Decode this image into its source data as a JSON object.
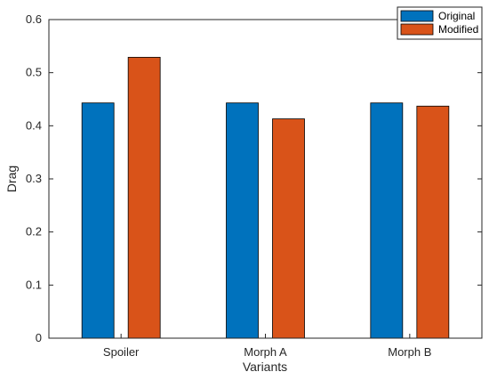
{
  "chart_data": {
    "type": "bar",
    "categories": [
      "Spoiler",
      "Morph A",
      "Morph B"
    ],
    "series": [
      {
        "name": "Original",
        "values": [
          0.443,
          0.443,
          0.443
        ],
        "color": "#0072BD"
      },
      {
        "name": "Modified",
        "values": [
          0.529,
          0.413,
          0.437
        ],
        "color": "#D95319"
      }
    ],
    "xlabel": "Variants",
    "ylabel": "Drag",
    "ylim": [
      0,
      0.6
    ],
    "yticks": [
      "0",
      "0.1",
      "0.2",
      "0.3",
      "0.4",
      "0.5",
      "0.6"
    ],
    "grid": false,
    "legend_position": "top-right"
  }
}
